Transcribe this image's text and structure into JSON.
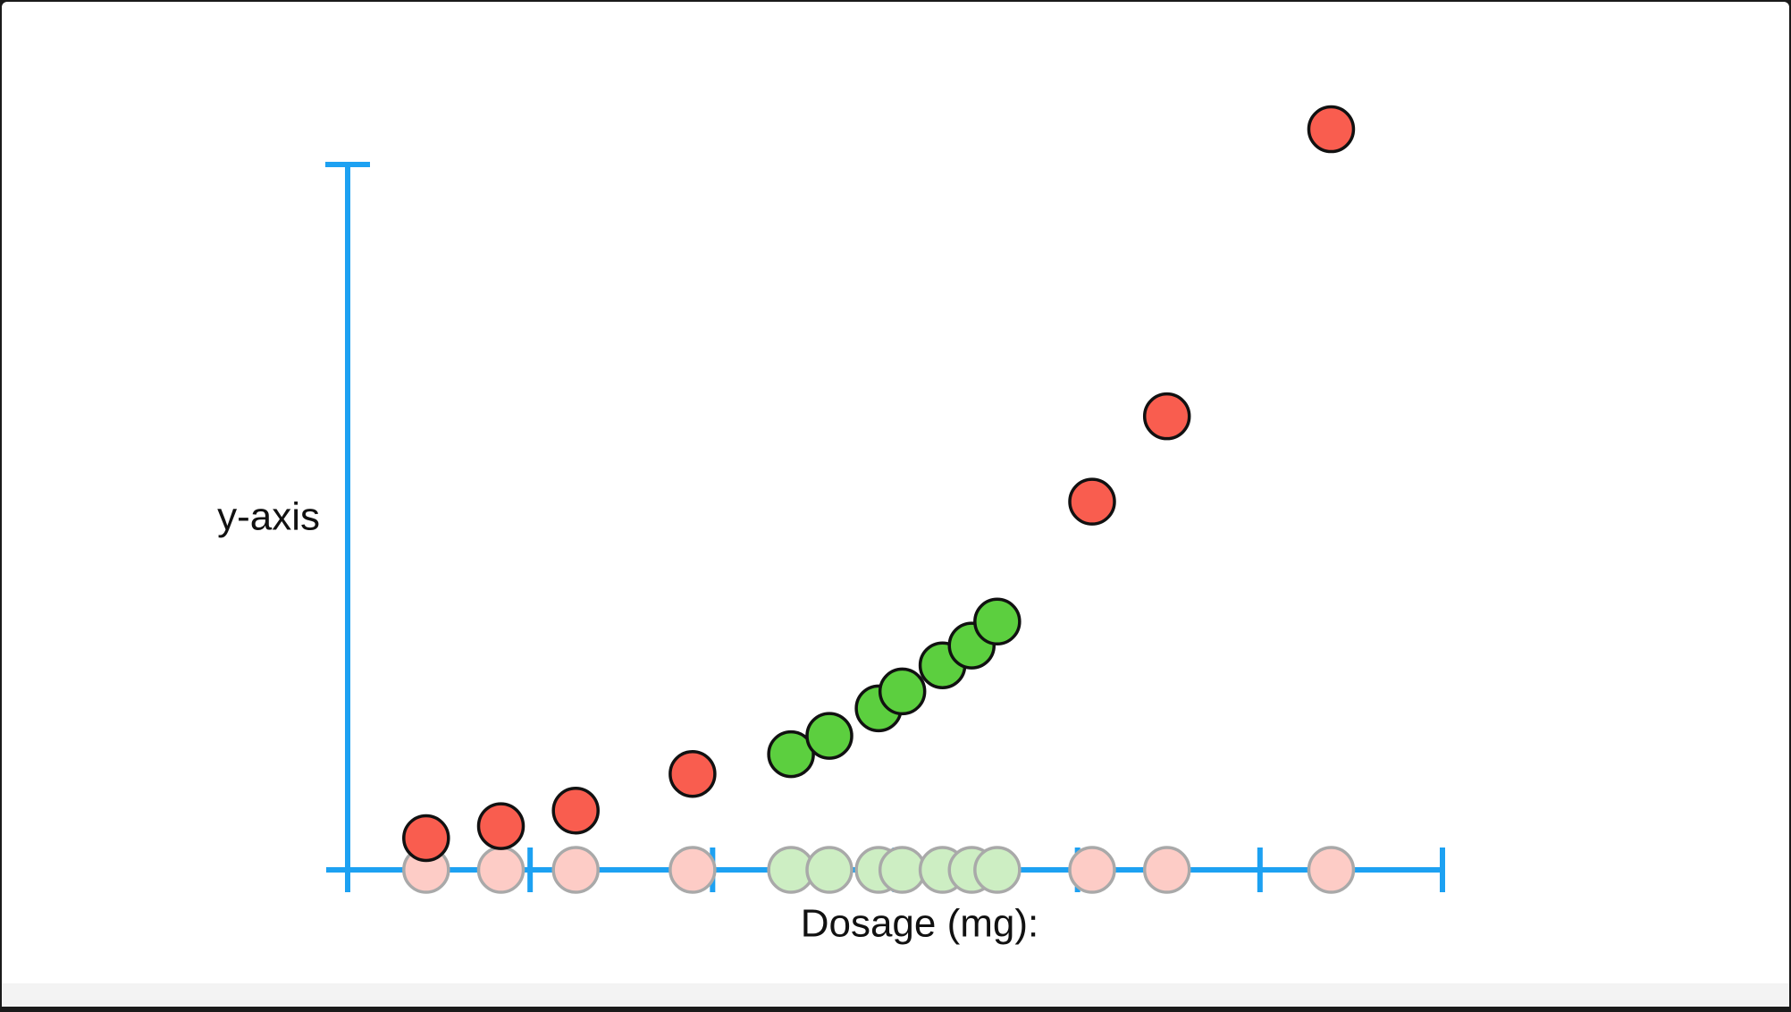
{
  "chart_data": {
    "type": "scatter",
    "xlabel": "Dosage (mg):",
    "ylabel": "y-axis",
    "xlim": [
      0,
      6
    ],
    "xticks": [
      0,
      1,
      2,
      3,
      4,
      5,
      6
    ],
    "ylim": [
      0,
      10
    ],
    "yticks": [
      0,
      10
    ],
    "axis_color": "#1da1f2",
    "series": [
      {
        "color": "#f95d4f",
        "faded_color": "#fdccc6",
        "x": [
          0.43,
          0.84,
          1.25,
          1.89,
          4.08,
          4.49,
          5.39
        ],
        "values": [
          0.45,
          0.62,
          0.84,
          1.36,
          5.22,
          6.43,
          10.5
        ]
      },
      {
        "color": "#5ccf3f",
        "faded_color": "#cdeec3",
        "x": [
          2.43,
          2.64,
          2.91,
          3.04,
          3.26,
          3.42,
          3.56
        ],
        "values": [
          1.64,
          1.9,
          2.29,
          2.53,
          2.9,
          3.18,
          3.52
        ]
      }
    ]
  }
}
